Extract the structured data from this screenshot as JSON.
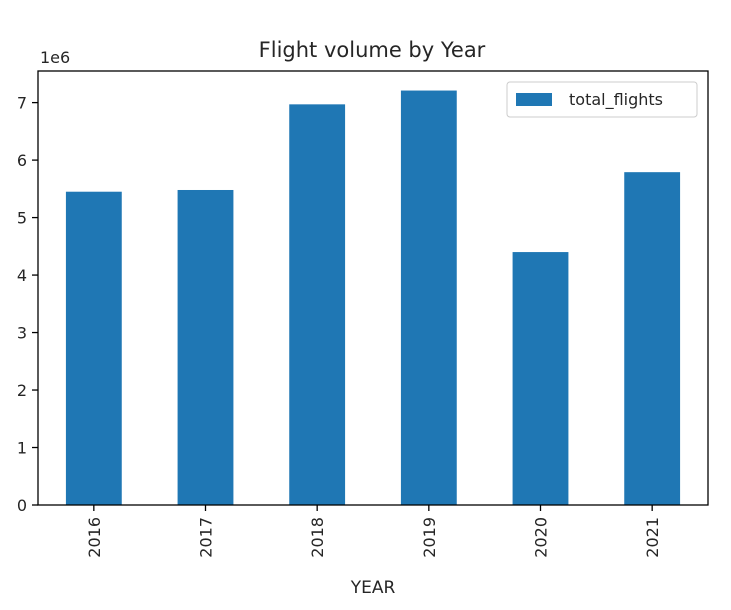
{
  "chart_data": {
    "type": "bar",
    "title": "Flight volume by Year",
    "xlabel": "YEAR",
    "ylabel": "",
    "y_scale_label": "1e6",
    "y_scale_factor": 1000000,
    "categories": [
      "2016",
      "2017",
      "2018",
      "2019",
      "2020",
      "2021"
    ],
    "series": [
      {
        "name": "total_flights",
        "color": "#1f77b4",
        "values": [
          5450000,
          5480000,
          6970000,
          7210000,
          4400000,
          5790000
        ]
      }
    ],
    "ylim": [
      0,
      7550000
    ],
    "yticks": [
      0,
      1,
      2,
      3,
      4,
      5,
      6,
      7
    ],
    "xtick_rotation": 90,
    "grid": false,
    "legend_position": "top-right"
  }
}
